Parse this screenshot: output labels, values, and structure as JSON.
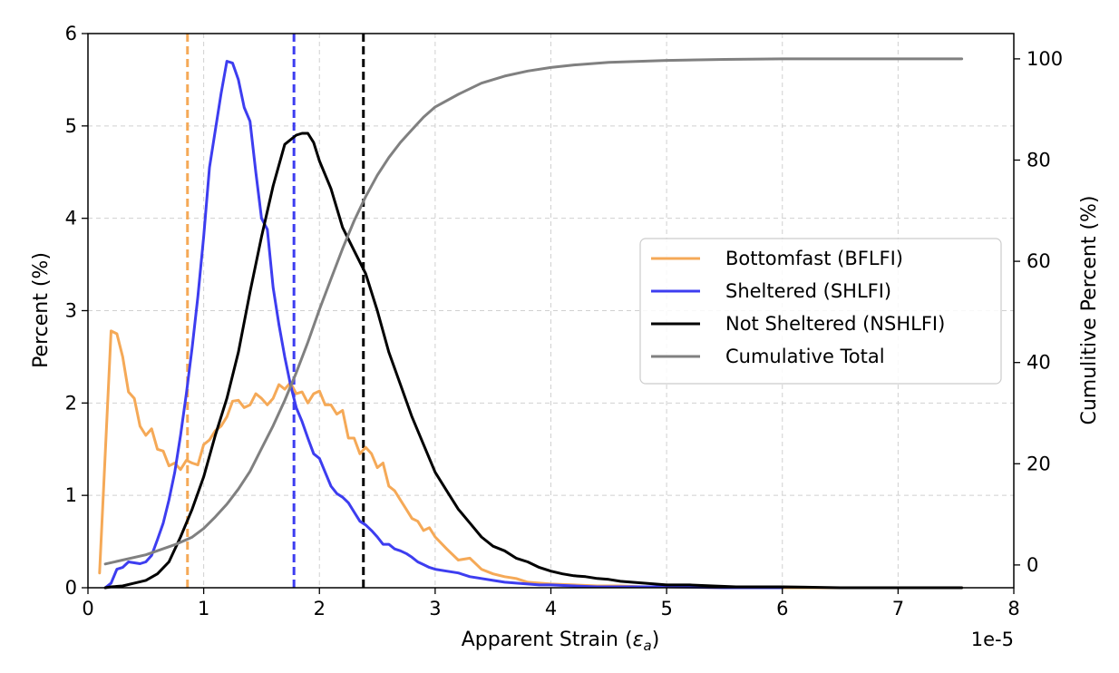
{
  "chart_data": {
    "type": "line",
    "xlabel": "Apparent Strain (",
    "xlabel_symbol": "ε",
    "xlabel_subscript": "a",
    "xlabel_close": ")",
    "x_offset_text": "1e-5",
    "ylabel_left": "Percent (%)",
    "ylabel_right": "Cumulitive Percent (%)",
    "xlim": [
      0,
      8
    ],
    "ylim_left": [
      0,
      6
    ],
    "ylim_right": [
      -4.5,
      105
    ],
    "x_ticks": [
      "0",
      "1",
      "2",
      "3",
      "4",
      "5",
      "6",
      "7",
      "8"
    ],
    "y_left_ticks": [
      "0",
      "1",
      "2",
      "3",
      "4",
      "5",
      "6"
    ],
    "y_right_ticks": [
      "0",
      "20",
      "40",
      "60",
      "80",
      "100"
    ],
    "grid": true,
    "legend_position": "center-right",
    "series": [
      {
        "name": "Bottomfast (BFLFI)",
        "axis": "left",
        "color": "#F5A957",
        "x": [
          0.1,
          0.2,
          0.25,
          0.3,
          0.35,
          0.4,
          0.45,
          0.5,
          0.55,
          0.6,
          0.65,
          0.7,
          0.75,
          0.8,
          0.85,
          0.9,
          0.95,
          1.0,
          1.05,
          1.1,
          1.15,
          1.2,
          1.25,
          1.3,
          1.35,
          1.4,
          1.45,
          1.5,
          1.55,
          1.6,
          1.65,
          1.7,
          1.75,
          1.8,
          1.85,
          1.9,
          1.95,
          2.0,
          2.05,
          2.1,
          2.15,
          2.2,
          2.25,
          2.3,
          2.35,
          2.4,
          2.45,
          2.5,
          2.55,
          2.6,
          2.65,
          2.7,
          2.75,
          2.8,
          2.85,
          2.9,
          2.95,
          3.0,
          3.1,
          3.2,
          3.3,
          3.4,
          3.5,
          3.6,
          3.7,
          3.8,
          3.9,
          4.0,
          4.2,
          4.4,
          4.6,
          4.8,
          5.0,
          5.5,
          6.0,
          6.5,
          7.0,
          7.55
        ],
        "values": [
          0.16,
          2.78,
          2.75,
          2.5,
          2.12,
          2.05,
          1.75,
          1.65,
          1.72,
          1.5,
          1.48,
          1.32,
          1.35,
          1.28,
          1.38,
          1.35,
          1.33,
          1.55,
          1.6,
          1.7,
          1.75,
          1.85,
          2.02,
          2.03,
          1.95,
          1.98,
          2.1,
          2.05,
          1.98,
          2.05,
          2.2,
          2.15,
          2.22,
          2.1,
          2.12,
          2.0,
          2.1,
          2.13,
          1.98,
          1.98,
          1.88,
          1.92,
          1.62,
          1.62,
          1.45,
          1.52,
          1.45,
          1.3,
          1.35,
          1.1,
          1.05,
          0.95,
          0.85,
          0.75,
          0.72,
          0.62,
          0.65,
          0.55,
          0.42,
          0.3,
          0.32,
          0.2,
          0.15,
          0.12,
          0.1,
          0.06,
          0.05,
          0.04,
          0.03,
          0.02,
          0.02,
          0.01,
          0.01,
          0.0,
          0.0,
          0.0,
          0.0,
          0.0
        ]
      },
      {
        "name": "Sheltered (SHLFI)",
        "axis": "left",
        "color": "#3D3DF0",
        "x": [
          0.15,
          0.2,
          0.25,
          0.3,
          0.35,
          0.4,
          0.45,
          0.5,
          0.55,
          0.6,
          0.65,
          0.7,
          0.75,
          0.8,
          0.85,
          0.9,
          0.95,
          1.0,
          1.05,
          1.1,
          1.15,
          1.2,
          1.25,
          1.3,
          1.35,
          1.4,
          1.45,
          1.5,
          1.55,
          1.6,
          1.65,
          1.7,
          1.75,
          1.8,
          1.85,
          1.9,
          1.95,
          2.0,
          2.05,
          2.1,
          2.15,
          2.2,
          2.25,
          2.3,
          2.35,
          2.4,
          2.45,
          2.5,
          2.55,
          2.6,
          2.65,
          2.7,
          2.75,
          2.8,
          2.85,
          2.9,
          2.95,
          3.0,
          3.1,
          3.2,
          3.3,
          3.4,
          3.5,
          3.6,
          3.7,
          3.8,
          3.9,
          4.0,
          4.2,
          4.4,
          4.6,
          5.0,
          5.5,
          6.0
        ],
        "values": [
          0.0,
          0.05,
          0.2,
          0.22,
          0.28,
          0.27,
          0.26,
          0.28,
          0.35,
          0.52,
          0.7,
          0.95,
          1.25,
          1.65,
          2.1,
          2.6,
          3.15,
          3.8,
          4.55,
          4.95,
          5.35,
          5.7,
          5.68,
          5.5,
          5.2,
          5.05,
          4.5,
          4.0,
          3.88,
          3.25,
          2.85,
          2.5,
          2.2,
          1.95,
          1.8,
          1.62,
          1.45,
          1.4,
          1.25,
          1.1,
          1.02,
          0.98,
          0.92,
          0.82,
          0.72,
          0.68,
          0.62,
          0.55,
          0.47,
          0.47,
          0.42,
          0.4,
          0.37,
          0.33,
          0.28,
          0.25,
          0.22,
          0.2,
          0.18,
          0.16,
          0.12,
          0.1,
          0.08,
          0.06,
          0.05,
          0.04,
          0.03,
          0.03,
          0.02,
          0.01,
          0.01,
          0.01,
          0.0,
          0.0
        ]
      },
      {
        "name": "Not Sheltered (NSHLFI)",
        "axis": "left",
        "color": "#000000",
        "x": [
          0.15,
          0.2,
          0.3,
          0.4,
          0.5,
          0.6,
          0.7,
          0.8,
          0.9,
          1.0,
          1.1,
          1.2,
          1.3,
          1.4,
          1.5,
          1.6,
          1.7,
          1.8,
          1.85,
          1.9,
          1.95,
          2.0,
          2.1,
          2.2,
          2.3,
          2.4,
          2.5,
          2.6,
          2.7,
          2.8,
          2.9,
          3.0,
          3.1,
          3.2,
          3.3,
          3.4,
          3.5,
          3.6,
          3.7,
          3.8,
          3.9,
          4.0,
          4.1,
          4.2,
          4.3,
          4.4,
          4.5,
          4.6,
          4.7,
          4.8,
          4.9,
          5.0,
          5.2,
          5.4,
          5.6,
          5.8,
          6.0,
          6.5,
          7.0,
          7.55
        ],
        "values": [
          0.0,
          0.01,
          0.02,
          0.05,
          0.08,
          0.15,
          0.28,
          0.55,
          0.85,
          1.2,
          1.65,
          2.05,
          2.55,
          3.2,
          3.8,
          4.35,
          4.8,
          4.9,
          4.92,
          4.92,
          4.82,
          4.62,
          4.32,
          3.9,
          3.65,
          3.4,
          3.0,
          2.55,
          2.2,
          1.85,
          1.55,
          1.25,
          1.05,
          0.85,
          0.7,
          0.55,
          0.45,
          0.4,
          0.32,
          0.28,
          0.22,
          0.18,
          0.15,
          0.13,
          0.12,
          0.1,
          0.09,
          0.07,
          0.06,
          0.05,
          0.04,
          0.03,
          0.03,
          0.02,
          0.01,
          0.01,
          0.01,
          0.0,
          0.0,
          0.0
        ]
      },
      {
        "name": "Cumulative Total",
        "axis": "right",
        "color": "#808080",
        "x": [
          0.15,
          0.5,
          0.75,
          0.9,
          1.0,
          1.1,
          1.2,
          1.3,
          1.4,
          1.5,
          1.6,
          1.7,
          1.8,
          1.9,
          2.0,
          2.1,
          2.2,
          2.3,
          2.4,
          2.5,
          2.6,
          2.7,
          2.8,
          2.9,
          3.0,
          3.2,
          3.4,
          3.6,
          3.8,
          4.0,
          4.2,
          4.5,
          5.0,
          5.5,
          6.0,
          7.0,
          7.55
        ],
        "values": [
          0.2,
          2.0,
          4.0,
          5.5,
          7.2,
          9.5,
          12.0,
          15.0,
          18.5,
          23.0,
          27.5,
          32.5,
          38.0,
          44.0,
          50.5,
          56.5,
          62.5,
          68.0,
          72.8,
          77.0,
          80.5,
          83.5,
          86.0,
          88.5,
          90.5,
          93.0,
          95.2,
          96.6,
          97.6,
          98.3,
          98.8,
          99.3,
          99.7,
          99.9,
          100.0,
          100.0,
          100.0
        ]
      }
    ],
    "vlines": [
      {
        "x": 0.86,
        "color": "#F5A957"
      },
      {
        "x": 1.78,
        "color": "#3D3DF0"
      },
      {
        "x": 2.38,
        "color": "#000000"
      }
    ]
  }
}
